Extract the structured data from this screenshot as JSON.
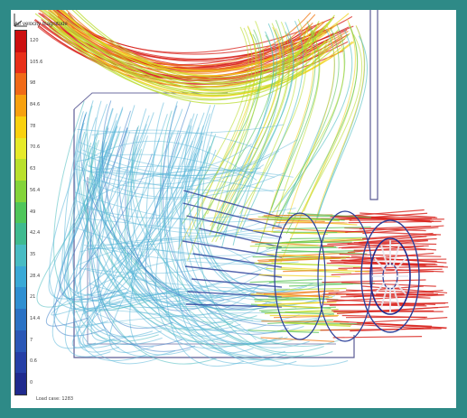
{
  "image": {
    "description_kind": "cfd-streamline-render",
    "colors": {
      "frame": "#2e8a87",
      "panel": "#ffffff",
      "housing_outline": "#4a4a8a"
    }
  },
  "legend": {
    "title": "Air velocity magnitude",
    "colors": [
      "#cc1010",
      "#e8301a",
      "#f06a18",
      "#f7a10f",
      "#f9d10f",
      "#e6ea2a",
      "#b9e02c",
      "#83d43a",
      "#4fc65a",
      "#3fba8f",
      "#48bcc3",
      "#3aa9d6",
      "#2f8fd1",
      "#2a72c4",
      "#2a57b6",
      "#263fa6",
      "#1f2a8e"
    ],
    "ticks": [
      "120",
      "105.6",
      "98",
      "84.6",
      "78",
      "70.6",
      "63",
      "56.4",
      "49",
      "42.4",
      "35",
      "28.4",
      "21",
      "14.4",
      "7",
      "0.6",
      "0"
    ]
  },
  "footer": {
    "label": "Load case: 1283"
  }
}
